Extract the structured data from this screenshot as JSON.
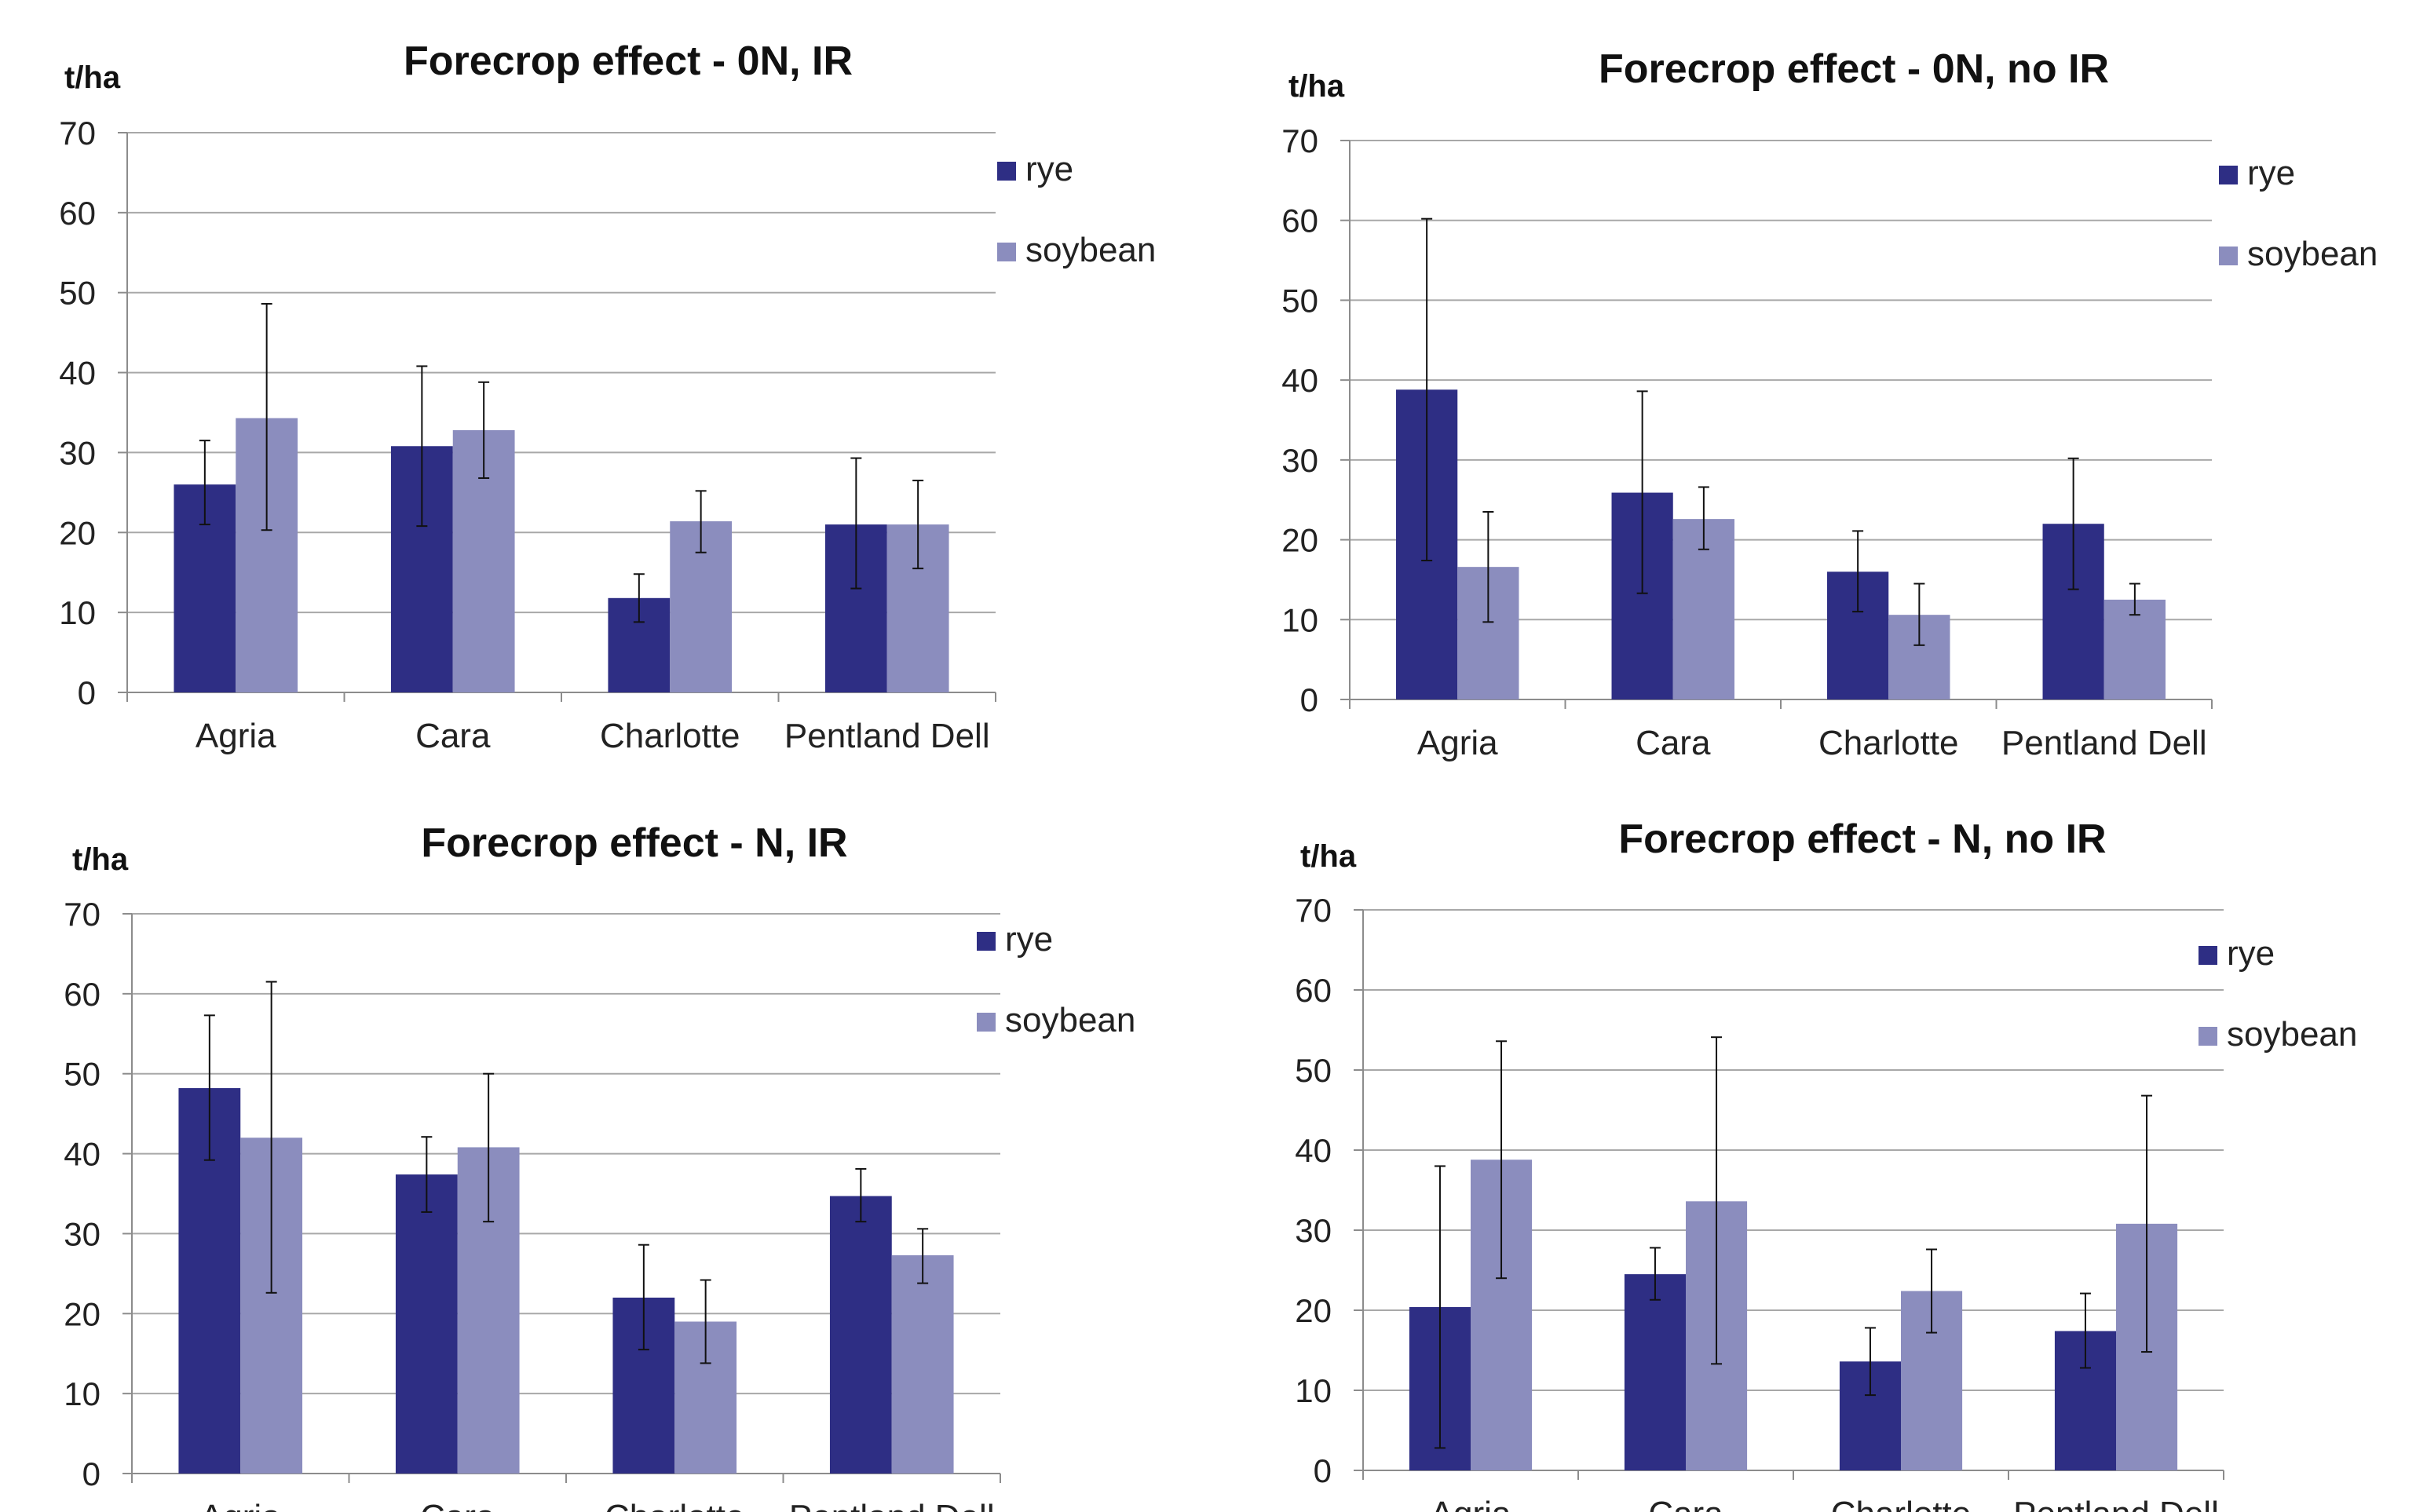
{
  "colors": {
    "rye": "#2e2e84",
    "soybean": "#8b8dbe",
    "grid": "#a8a8a8",
    "axis": "#8c8c8c",
    "error": "#111111"
  },
  "chart_data": [
    {
      "type": "bar",
      "title": "Forecrop effect - 0N, IR",
      "ylabel": "t/ha",
      "categories": [
        "Agria",
        "Cara",
        "Charlotte",
        "Pentland Dell"
      ],
      "ylim": [
        0,
        70
      ],
      "yticks": [
        0,
        10,
        20,
        30,
        40,
        50,
        60,
        70
      ],
      "grid": true,
      "legend": "right",
      "series": [
        {
          "name": "rye",
          "values": [
            26,
            30.8,
            11.8,
            21
          ],
          "err_low": [
            21,
            20.8,
            8.8,
            13
          ],
          "err_high": [
            31.5,
            40.8,
            14.8,
            29.3
          ]
        },
        {
          "name": "soybean",
          "values": [
            34.3,
            32.8,
            21.4,
            21
          ],
          "err_low": [
            20.3,
            26.8,
            17.5,
            15.5
          ],
          "err_high": [
            48.6,
            38.8,
            25.2,
            26.5
          ]
        }
      ]
    },
    {
      "type": "bar",
      "title": "Forecrop effect - 0N, no IR",
      "ylabel": "t/ha",
      "categories": [
        "Agria",
        "Cara",
        "Charlotte",
        "Pentland Dell"
      ],
      "ylim": [
        0,
        70
      ],
      "yticks": [
        0,
        10,
        20,
        30,
        40,
        50,
        60,
        70
      ],
      "grid": true,
      "legend": "right",
      "series": [
        {
          "name": "rye",
          "values": [
            38.8,
            25.9,
            16,
            22
          ],
          "err_low": [
            17.4,
            13.3,
            11,
            13.8
          ],
          "err_high": [
            60.2,
            38.6,
            21.1,
            30.2
          ]
        },
        {
          "name": "soybean",
          "values": [
            16.6,
            22.6,
            10.6,
            12.5
          ],
          "err_low": [
            9.7,
            18.8,
            6.8,
            10.6
          ],
          "err_high": [
            23.5,
            26.6,
            14.5,
            14.5
          ]
        }
      ]
    },
    {
      "type": "bar",
      "title": "Forecrop effect - N, IR",
      "ylabel": "t/ha",
      "categories": [
        "Agria",
        "Cara",
        "Charlotte",
        "Pentland Dell"
      ],
      "ylim": [
        0,
        70
      ],
      "yticks": [
        0,
        10,
        20,
        30,
        40,
        50,
        60,
        70
      ],
      "grid": true,
      "legend": "right",
      "series": [
        {
          "name": "rye",
          "values": [
            48.2,
            37.4,
            22,
            34.7
          ],
          "err_low": [
            39.2,
            32.7,
            15.5,
            31.5
          ],
          "err_high": [
            57.3,
            42.1,
            28.6,
            38.1
          ]
        },
        {
          "name": "soybean",
          "values": [
            42,
            40.8,
            19,
            27.3
          ],
          "err_low": [
            22.6,
            31.5,
            13.8,
            23.8
          ],
          "err_high": [
            61.5,
            50,
            24.2,
            30.6
          ]
        }
      ]
    },
    {
      "type": "bar",
      "title": "Forecrop effect - N,  no IR",
      "ylabel": "t/ha",
      "categories": [
        "Agria",
        "Cara",
        "Charlotte",
        "Pentland Dell"
      ],
      "ylim": [
        0,
        70
      ],
      "yticks": [
        0,
        10,
        20,
        30,
        40,
        50,
        60,
        70
      ],
      "grid": true,
      "legend": "right",
      "series": [
        {
          "name": "rye",
          "values": [
            20.4,
            24.5,
            13.6,
            17.4
          ],
          "err_low": [
            2.8,
            21.3,
            9.4,
            12.8
          ],
          "err_high": [
            38,
            27.8,
            17.8,
            22.1
          ]
        },
        {
          "name": "soybean",
          "values": [
            38.8,
            33.6,
            22.4,
            30.8
          ],
          "err_low": [
            24,
            13.3,
            17.2,
            14.8
          ],
          "err_high": [
            53.6,
            54.1,
            27.6,
            46.8
          ]
        }
      ]
    }
  ]
}
